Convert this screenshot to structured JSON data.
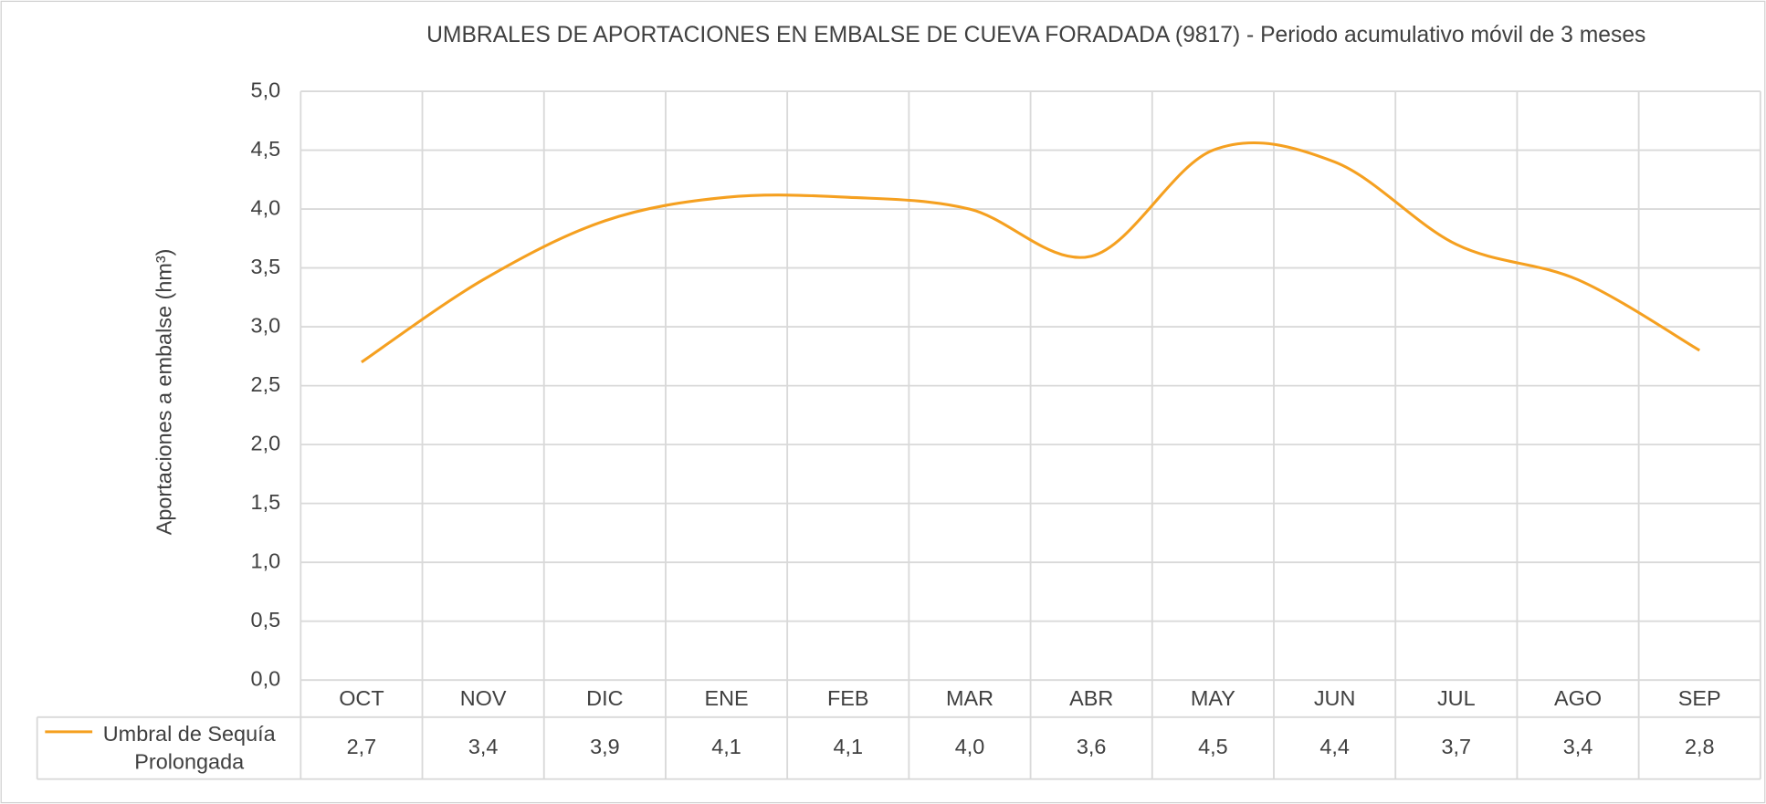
{
  "chart_data": {
    "type": "line",
    "title": "UMBRALES DE APORTACIONES EN EMBALSE DE CUEVA FORADADA (9817) - Periodo acumulativo  móvil de 3 meses",
    "y_label": "Aportaciones a embalse (hm³)",
    "categories": [
      "OCT",
      "NOV",
      "DIC",
      "ENE",
      "FEB",
      "MAR",
      "ABR",
      "MAY",
      "JUN",
      "JUL",
      "AGO",
      "SEP"
    ],
    "series": [
      {
        "name": "Umbral de Sequía Prolongada",
        "color": "#f5a020",
        "values": [
          2.7,
          3.4,
          3.9,
          4.1,
          4.1,
          4.0,
          3.6,
          4.5,
          4.4,
          3.7,
          3.4,
          2.8
        ],
        "value_labels": [
          "2,7",
          "3,4",
          "3,9",
          "4,1",
          "4,1",
          "4,0",
          "3,6",
          "4,5",
          "4,4",
          "3,7",
          "3,4",
          "2,8"
        ]
      }
    ],
    "ylim": [
      0,
      5
    ],
    "yticks": [
      {
        "value": 0,
        "label": "0,0"
      },
      {
        "value": 0.5,
        "label": "0,5"
      },
      {
        "value": 1,
        "label": "1,0"
      },
      {
        "value": 1.5,
        "label": "1,5"
      },
      {
        "value": 2,
        "label": "2,0"
      },
      {
        "value": 2.5,
        "label": "2,5"
      },
      {
        "value": 3,
        "label": "3,0"
      },
      {
        "value": 3.5,
        "label": "3,5"
      },
      {
        "value": 4,
        "label": "4,0"
      },
      {
        "value": 4.5,
        "label": "4,5"
      },
      {
        "value": 5,
        "label": "5,0"
      }
    ],
    "grid": true,
    "smooth": true
  }
}
